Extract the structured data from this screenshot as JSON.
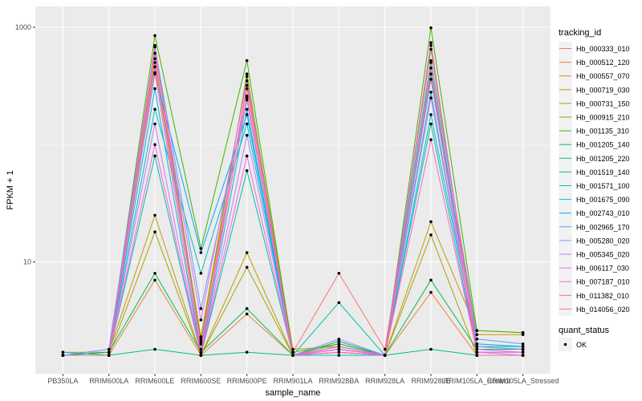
{
  "chart_data": {
    "type": "line",
    "xlabel": "sample_name",
    "ylabel": "FPKM + 1",
    "y_scale": "log10",
    "ylim": [
      1.0,
      1000
    ],
    "y_ticks": [
      {
        "value": 10,
        "label": "10"
      },
      {
        "value": 1000,
        "label": "1000"
      }
    ],
    "categories": [
      "PB350LA",
      "RRIM600LA",
      "RRIM600LE",
      "RRIM600SE",
      "RRIM600PE",
      "RRIM901LA",
      "RRIM928BA",
      "RRIM928LA",
      "RRIM928LE",
      "RRIM105LA_Control",
      "RRIM105LA_Stressed"
    ],
    "grid": true,
    "background": "#ebebeb",
    "legend": {
      "title": "tracking_id",
      "placement": "right"
    },
    "shape_legend": {
      "title": "quant_status",
      "items": [
        {
          "label": "OK",
          "shape": "point"
        }
      ]
    },
    "series": [
      {
        "name": "Hb_000333_010",
        "color": "#f8766d",
        "values": [
          1.6,
          1.6,
          500,
          2.2,
          300,
          1.7,
          8,
          1.8,
          450,
          1.9,
          1.8
        ]
      },
      {
        "name": "Hb_000512_120",
        "color": "#ea8331",
        "values": [
          1.6,
          1.6,
          7,
          1.6,
          3.6,
          1.6,
          1.8,
          1.6,
          5.5,
          1.6,
          1.6
        ]
      },
      {
        "name": "Hb_000557_070",
        "color": "#d89000",
        "values": [
          1.6,
          1.6,
          540,
          2.3,
          380,
          1.8,
          1.9,
          1.6,
          500,
          2.4,
          2.4
        ]
      },
      {
        "name": "Hb_000719_030",
        "color": "#c09b00",
        "values": [
          1.7,
          1.7,
          25,
          1.6,
          12,
          1.6,
          2.1,
          1.6,
          22,
          2.6,
          2.5
        ]
      },
      {
        "name": "Hb_000731_150",
        "color": "#a3a500",
        "values": [
          1.6,
          1.6,
          18,
          1.6,
          9,
          1.6,
          2.0,
          1.6,
          17,
          1.6,
          1.6
        ]
      },
      {
        "name": "Hb_000915_210",
        "color": "#7cae00",
        "values": [
          1.6,
          1.6,
          700,
          2.1,
          400,
          1.6,
          1.9,
          1.6,
          650,
          1.8,
          1.8
        ]
      },
      {
        "name": "Hb_001135_310",
        "color": "#39b600",
        "values": [
          1.6,
          1.7,
          850,
          13,
          520,
          1.7,
          2.0,
          1.6,
          990,
          2.6,
          2.5
        ]
      },
      {
        "name": "Hb_001205_140",
        "color": "#00bb4e",
        "values": [
          1.6,
          1.7,
          8,
          1.7,
          4,
          1.6,
          1.8,
          1.6,
          7,
          1.8,
          1.8
        ]
      },
      {
        "name": "Hb_001205_220",
        "color": "#00bf7d",
        "values": [
          1.6,
          1.6,
          1.8,
          1.6,
          1.7,
          1.6,
          1.7,
          1.6,
          1.8,
          1.6,
          1.6
        ]
      },
      {
        "name": "Hb_001519_140",
        "color": "#00c1a3",
        "values": [
          1.6,
          1.6,
          80,
          1.6,
          60,
          1.6,
          4.5,
          1.6,
          150,
          1.7,
          1.7
        ]
      },
      {
        "name": "Hb_001571_100",
        "color": "#00bfc4",
        "values": [
          1.6,
          1.6,
          200,
          8,
          150,
          1.6,
          2.1,
          1.6,
          180,
          1.9,
          1.9
        ]
      },
      {
        "name": "Hb_001675_090",
        "color": "#00b8e7",
        "values": [
          1.7,
          1.6,
          300,
          1.6,
          200,
          1.6,
          1.6,
          1.6,
          280,
          1.6,
          1.6
        ]
      },
      {
        "name": "Hb_002743_010",
        "color": "#00a9ff",
        "values": [
          1.6,
          1.6,
          400,
          12,
          180,
          1.6,
          1.8,
          1.6,
          400,
          2.0,
          1.9
        ]
      },
      {
        "name": "Hb_002965_170",
        "color": "#619cff",
        "values": [
          1.6,
          1.8,
          680,
          4,
          250,
          1.6,
          1.9,
          1.6,
          520,
          2.2,
          2.0
        ]
      },
      {
        "name": "Hb_005280_020",
        "color": "#9f8cff",
        "values": [
          1.6,
          1.6,
          460,
          2,
          240,
          1.6,
          2.2,
          1.6,
          360,
          1.9,
          1.8
        ]
      },
      {
        "name": "Hb_005345_020",
        "color": "#c77cff",
        "values": [
          1.6,
          1.6,
          150,
          1.6,
          120,
          1.6,
          1.8,
          1.6,
          250,
          1.7,
          1.7
        ]
      },
      {
        "name": "Hb_006117_030",
        "color": "#e76bf3",
        "values": [
          1.6,
          1.6,
          600,
          3.2,
          350,
          1.6,
          1.9,
          1.6,
          700,
          1.8,
          1.7
        ]
      },
      {
        "name": "Hb_007187_010",
        "color": "#fa62db",
        "values": [
          1.6,
          1.6,
          100,
          1.6,
          80,
          1.6,
          1.8,
          1.6,
          110,
          1.7,
          1.6
        ]
      },
      {
        "name": "Hb_011382_010",
        "color": "#ff62bc",
        "values": [
          1.6,
          1.6,
          680,
          1.8,
          320,
          1.6,
          1.7,
          1.6,
          740,
          1.6,
          1.6
        ]
      },
      {
        "name": "Hb_014056_020",
        "color": "#ff6c91",
        "values": [
          1.6,
          1.6,
          410,
          1.7,
          260,
          1.6,
          1.7,
          1.6,
          360,
          1.6,
          1.6
        ]
      }
    ]
  }
}
